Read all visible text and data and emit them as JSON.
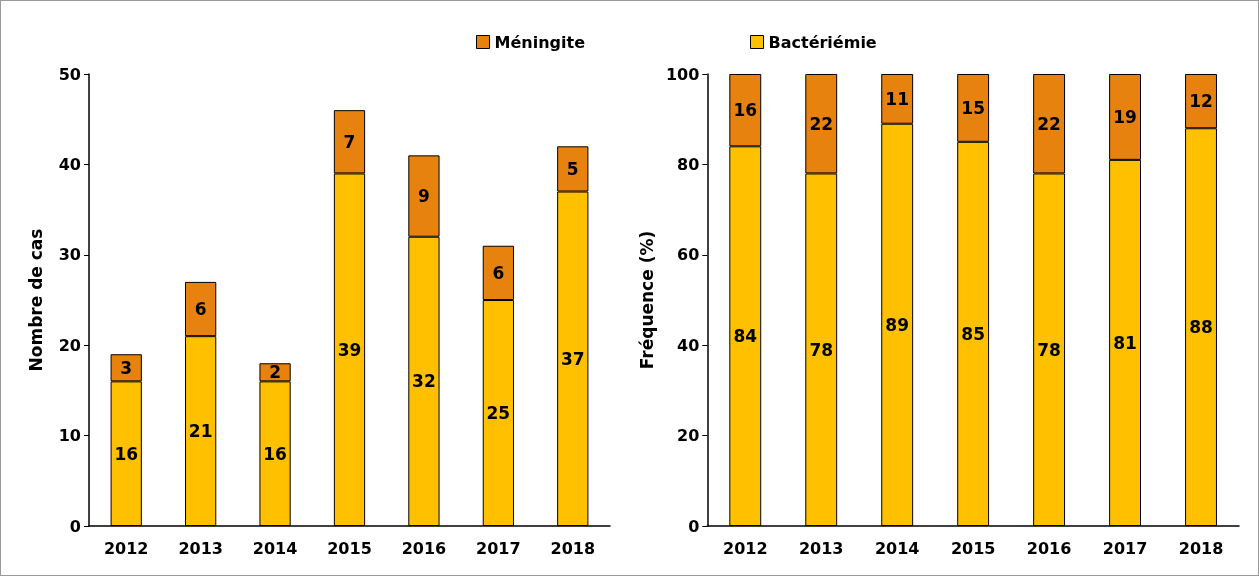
{
  "chart_data": [
    {
      "type": "bar",
      "stacked": true,
      "ylabel": "Nombre de cas",
      "categories": [
        "2012",
        "2013",
        "2014",
        "2015",
        "2016",
        "2017",
        "2018"
      ],
      "ylim": [
        0,
        50
      ],
      "yticks": [
        0,
        10,
        20,
        30,
        40,
        50
      ],
      "grid": false,
      "legend": "top right",
      "data_labels": true,
      "series": [
        {
          "color": "#ffc000",
          "values": [
            16,
            21,
            16,
            39,
            32,
            25,
            37
          ]
        },
        {
          "name": "Méningite",
          "color": "#e8820e",
          "values": [
            3,
            6,
            2,
            7,
            9,
            6,
            5
          ]
        }
      ]
    },
    {
      "type": "bar",
      "stacked": true,
      "ylabel": "Fréquence (%)",
      "categories": [
        "2012",
        "2013",
        "2014",
        "2015",
        "2016",
        "2017",
        "2018"
      ],
      "ylim": [
        0,
        100
      ],
      "yticks": [
        0,
        20,
        40,
        60,
        80,
        100
      ],
      "grid": false,
      "legend": "top left",
      "data_labels": true,
      "series": [
        {
          "name": "Bactériémie",
          "color": "#ffc000",
          "values": [
            84,
            78,
            89,
            85,
            78,
            81,
            88
          ]
        },
        {
          "color": "#e8820e",
          "values": [
            16,
            22,
            11,
            15,
            22,
            19,
            12
          ]
        }
      ]
    }
  ]
}
